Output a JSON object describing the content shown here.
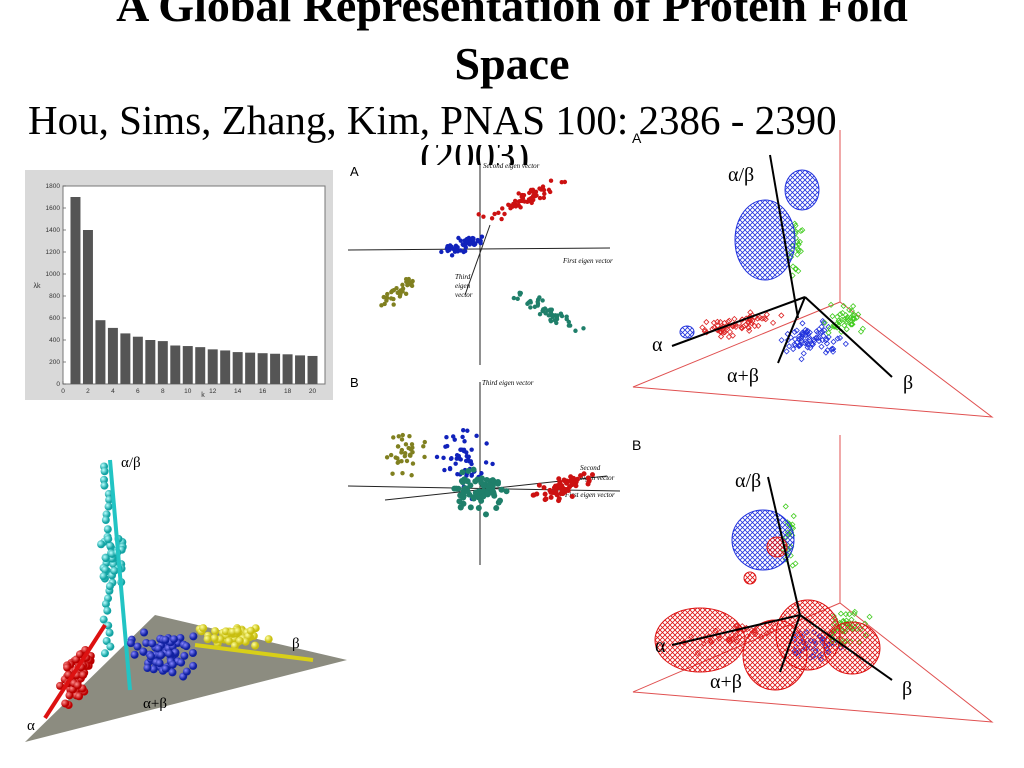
{
  "slide": {
    "title_line1": "A Global Representation of Protein Fold",
    "title_line2": "Space",
    "citation": "Hou, Sims, Zhang, Kim, PNAS 100: 2386 - 2390",
    "citation_year": "(2003)"
  },
  "chart_data": {
    "type": "bar",
    "xlabel": "k",
    "ylabel": "λk",
    "xlim": [
      0,
      21
    ],
    "ylim": [
      0,
      1800
    ],
    "x_ticks": [
      "0",
      "2",
      "4",
      "6",
      "8",
      "10",
      "12",
      "14",
      "16",
      "18",
      "20"
    ],
    "y_ticks": [
      "0",
      "200",
      "400",
      "600",
      "800",
      "1000",
      "1200",
      "1400",
      "1600",
      "1800"
    ],
    "categories": [
      "1",
      "2",
      "3",
      "4",
      "5",
      "6",
      "7",
      "8",
      "9",
      "10",
      "11",
      "12",
      "13",
      "14",
      "15",
      "16",
      "17",
      "18",
      "19",
      "20"
    ],
    "values": [
      1700,
      1400,
      580,
      510,
      460,
      430,
      400,
      390,
      350,
      345,
      335,
      315,
      305,
      290,
      285,
      280,
      275,
      270,
      260,
      255
    ],
    "bar_color": "#555555"
  },
  "pca": {
    "panel_a_label": "A",
    "panel_b_label": "B",
    "second_eigen_vector": "Second eigen vector",
    "first_eigen_vector": "First eigen vector",
    "third_eigen": "Third",
    "eigen": "eigen",
    "vector": "vector",
    "third_eigen_vector": "Third eigen vector",
    "second": "Second",
    "eigen_vector": "eigen vector",
    "colors": {
      "red": "#cc1111",
      "blue": "#1122bb",
      "olive": "#808020",
      "teal": "#1f7f6a"
    }
  },
  "balls": {
    "alpha_beta": "α/β",
    "beta": "β",
    "alpha_plus_beta": "α+β",
    "alpha": "α",
    "colors": {
      "cyan": "#22c4c4",
      "blue": "#2233cc",
      "yellow": "#e6dc1e",
      "red": "#dd1111",
      "plane": "#8c8c80"
    }
  },
  "mesh_a": {
    "panel_label": "A",
    "alpha_beta": "α/β",
    "alpha": "α",
    "alpha_plus_beta": "α+β",
    "beta": "β"
  },
  "mesh_b": {
    "panel_label": "B",
    "alpha_beta": "α/β",
    "alpha": "α",
    "alpha_plus_beta": "α+β",
    "beta": "β"
  }
}
